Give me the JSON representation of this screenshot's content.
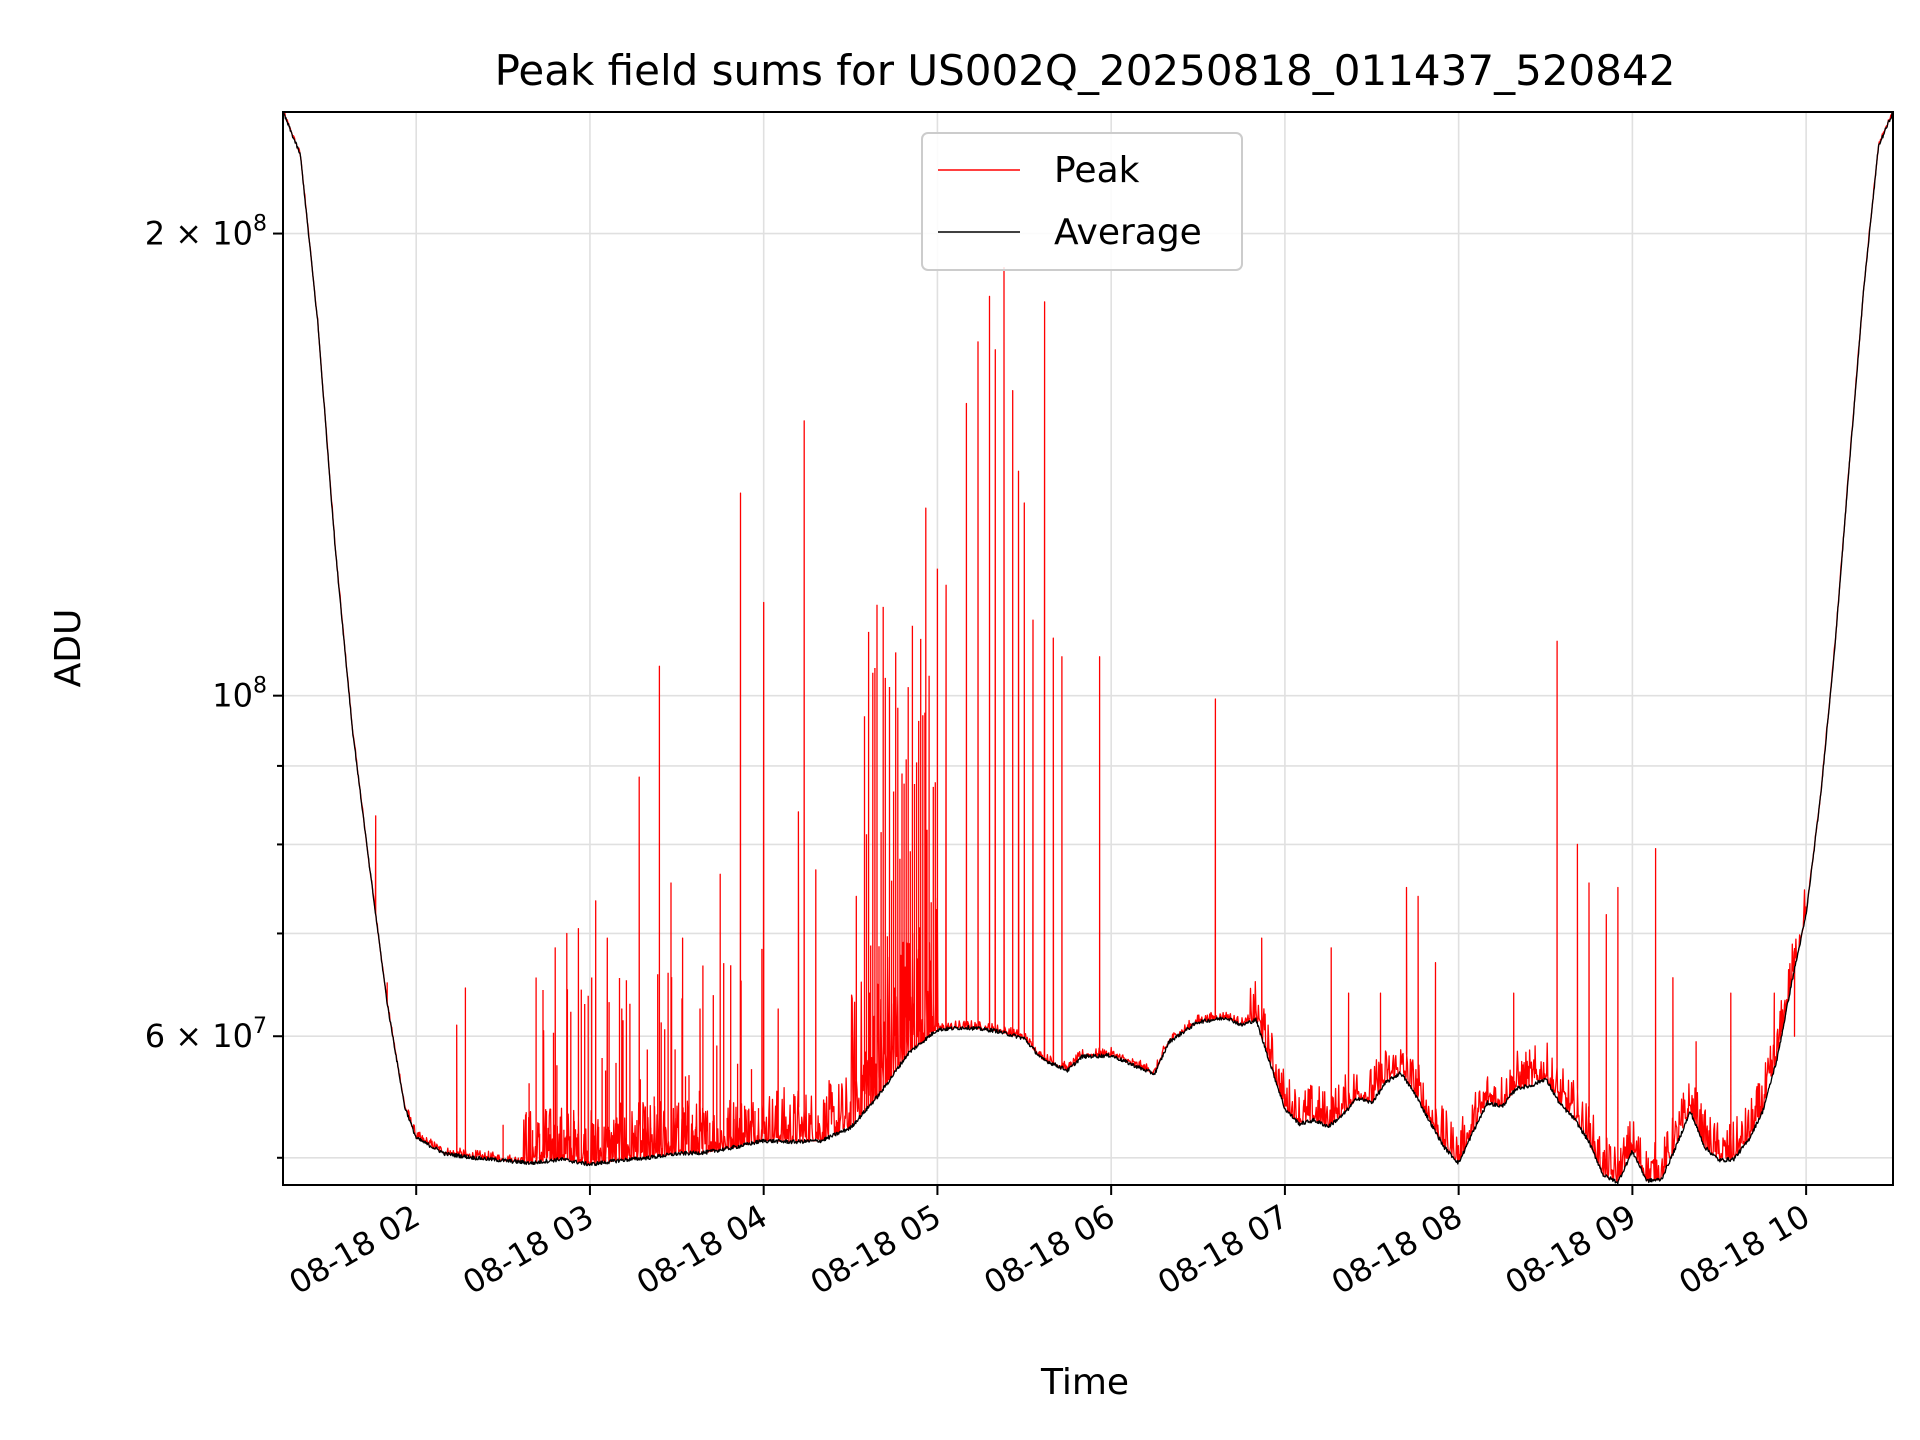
{
  "chart_data": {
    "type": "line",
    "title": "Peak field sums for US002Q_20250818_011437_520842",
    "xlabel": "Time",
    "ylabel": "ADU",
    "y_scale": "log",
    "ylim": [
      48000000,
      240000000
    ],
    "x_range_hours": [
      "08-18 01:14",
      "08-18 10:30"
    ],
    "grid": true,
    "legend": {
      "position": "upper-center",
      "entries": [
        "Peak",
        "Average"
      ]
    },
    "x_ticks": [
      {
        "hour": 2,
        "label": "08-18 02"
      },
      {
        "hour": 3,
        "label": "08-18 03"
      },
      {
        "hour": 4,
        "label": "08-18 04"
      },
      {
        "hour": 5,
        "label": "08-18 05"
      },
      {
        "hour": 6,
        "label": "08-18 06"
      },
      {
        "hour": 7,
        "label": "08-18 07"
      },
      {
        "hour": 8,
        "label": "08-18 08"
      },
      {
        "hour": 9,
        "label": "08-18 09"
      },
      {
        "hour": 10,
        "label": "08-18 10"
      }
    ],
    "y_major_ticks": [
      {
        "value": 200000000,
        "base": "2",
        "mult": "×",
        "pow": "10",
        "exp": "8"
      },
      {
        "value": 100000000,
        "base": "",
        "mult": "",
        "pow": "10",
        "exp": "8"
      },
      {
        "value": 60000000,
        "base": "6",
        "mult": "×",
        "pow": "10",
        "exp": "7"
      }
    ],
    "y_minor_ticks": [
      50000000,
      70000000,
      80000000,
      90000000
    ],
    "series": [
      {
        "name": "Average",
        "color": "#000000",
        "points": [
          [
            "01:14",
            240000000
          ],
          [
            "01:20",
            225000000
          ],
          [
            "01:26",
            175000000
          ],
          [
            "01:32",
            125000000
          ],
          [
            "01:38",
            95000000
          ],
          [
            "01:44",
            77000000
          ],
          [
            "01:50",
            63000000
          ],
          [
            "01:56",
            54000000
          ],
          [
            "02:00",
            51500000
          ],
          [
            "02:10",
            50300000
          ],
          [
            "02:20",
            50000000
          ],
          [
            "02:30",
            49800000
          ],
          [
            "02:40",
            49600000
          ],
          [
            "02:50",
            49900000
          ],
          [
            "03:00",
            49500000
          ],
          [
            "03:10",
            49800000
          ],
          [
            "03:20",
            50000000
          ],
          [
            "03:30",
            50300000
          ],
          [
            "03:40",
            50400000
          ],
          [
            "03:50",
            50800000
          ],
          [
            "04:00",
            51300000
          ],
          [
            "04:10",
            51200000
          ],
          [
            "04:20",
            51300000
          ],
          [
            "04:30",
            52300000
          ],
          [
            "04:40",
            55000000
          ],
          [
            "04:50",
            58500000
          ],
          [
            "05:00",
            60600000
          ],
          [
            "05:10",
            60800000
          ],
          [
            "05:20",
            60500000
          ],
          [
            "05:30",
            59800000
          ],
          [
            "05:36",
            58000000
          ],
          [
            "05:45",
            57000000
          ],
          [
            "05:50",
            58200000
          ],
          [
            "06:00",
            58300000
          ],
          [
            "06:10",
            57200000
          ],
          [
            "06:15",
            56700000
          ],
          [
            "06:20",
            59500000
          ],
          [
            "06:30",
            61300000
          ],
          [
            "06:40",
            61700000
          ],
          [
            "06:45",
            61000000
          ],
          [
            "06:50",
            61500000
          ],
          [
            "07:00",
            53800000
          ],
          [
            "07:05",
            52600000
          ],
          [
            "07:10",
            52900000
          ],
          [
            "07:15",
            52400000
          ],
          [
            "07:20",
            53300000
          ],
          [
            "07:25",
            54700000
          ],
          [
            "07:30",
            54300000
          ],
          [
            "07:35",
            56000000
          ],
          [
            "07:40",
            56800000
          ],
          [
            "07:45",
            55000000
          ],
          [
            "07:50",
            52800000
          ],
          [
            "07:55",
            50800000
          ],
          [
            "08:00",
            49600000
          ],
          [
            "08:05",
            52000000
          ],
          [
            "08:10",
            54300000
          ],
          [
            "08:15",
            54000000
          ],
          [
            "08:20",
            55500000
          ],
          [
            "08:25",
            55700000
          ],
          [
            "08:30",
            56300000
          ],
          [
            "08:35",
            54200000
          ],
          [
            "08:40",
            53000000
          ],
          [
            "08:45",
            51200000
          ],
          [
            "08:50",
            48700000
          ],
          [
            "08:55",
            48200000
          ],
          [
            "09:00",
            50500000
          ],
          [
            "09:05",
            48300000
          ],
          [
            "09:10",
            48400000
          ],
          [
            "09:15",
            50800000
          ],
          [
            "09:20",
            53600000
          ],
          [
            "09:25",
            50800000
          ],
          [
            "09:30",
            49800000
          ],
          [
            "09:35",
            49900000
          ],
          [
            "09:40",
            51300000
          ],
          [
            "09:45",
            53600000
          ],
          [
            "09:50",
            58000000
          ],
          [
            "09:55",
            65000000
          ],
          [
            "10:00",
            72000000
          ],
          [
            "10:05",
            86000000
          ],
          [
            "10:10",
            108000000
          ],
          [
            "10:15",
            142000000
          ],
          [
            "10:20",
            185000000
          ],
          [
            "10:25",
            228000000
          ],
          [
            "10:30",
            240000000
          ]
        ]
      },
      {
        "name": "Peak",
        "color": "#ff0000",
        "spikes": [
          [
            "01:46",
            83500000
          ],
          [
            "01:50",
            65000000
          ],
          [
            "02:14",
            61000000
          ],
          [
            "02:17",
            64500000
          ],
          [
            "02:30",
            52500000
          ],
          [
            "02:38",
            53500000
          ],
          [
            "02:44",
            60500000
          ],
          [
            "02:48",
            68500000
          ],
          [
            "02:52",
            70000000
          ],
          [
            "02:56",
            70500000
          ],
          [
            "03:02",
            73500000
          ],
          [
            "03:06",
            69500000
          ],
          [
            "03:11",
            62500000
          ],
          [
            "03:17",
            88500000
          ],
          [
            "03:24",
            104500000
          ],
          [
            "03:28",
            75500000
          ],
          [
            "03:32",
            69500000
          ],
          [
            "03:38",
            62500000
          ],
          [
            "03:45",
            76500000
          ],
          [
            "03:52",
            135500000
          ],
          [
            "04:00",
            115000000
          ],
          [
            "04:05",
            62500000
          ],
          [
            "04:12",
            84000000
          ],
          [
            "04:14",
            151000000
          ],
          [
            "04:18",
            77000000
          ],
          [
            "04:32",
            74000000
          ],
          [
            "04:42",
            68000000
          ],
          [
            "04:52",
            70000000
          ],
          [
            "04:56",
            132500000
          ],
          [
            "05:03",
            118000000
          ],
          [
            "05:10",
            155000000
          ],
          [
            "05:14",
            170000000
          ],
          [
            "05:18",
            182000000
          ],
          [
            "05:20",
            168000000
          ],
          [
            "05:23",
            190000000
          ],
          [
            "05:26",
            158000000
          ],
          [
            "05:28",
            140000000
          ],
          [
            "05:30",
            133500000
          ],
          [
            "05:33",
            112000000
          ],
          [
            "05:37",
            180500000
          ],
          [
            "05:40",
            109000000
          ],
          [
            "05:43",
            106000000
          ],
          [
            "05:56",
            106000000
          ],
          [
            "06:36",
            99500000
          ],
          [
            "06:52",
            69500000
          ],
          [
            "07:16",
            68500000
          ],
          [
            "07:22",
            64000000
          ],
          [
            "07:33",
            64000000
          ],
          [
            "07:42",
            75000000
          ],
          [
            "07:46",
            74000000
          ],
          [
            "07:52",
            67000000
          ],
          [
            "08:19",
            64000000
          ],
          [
            "08:34",
            108500000
          ],
          [
            "08:41",
            80000000
          ],
          [
            "08:45",
            75500000
          ],
          [
            "08:51",
            72000000
          ],
          [
            "08:55",
            75000000
          ],
          [
            "09:08",
            79500000
          ],
          [
            "09:14",
            65500000
          ],
          [
            "09:22",
            59500000
          ],
          [
            "09:34",
            64000000
          ],
          [
            "09:49",
            64000000
          ],
          [
            "09:56",
            60000000
          ]
        ]
      }
    ]
  }
}
